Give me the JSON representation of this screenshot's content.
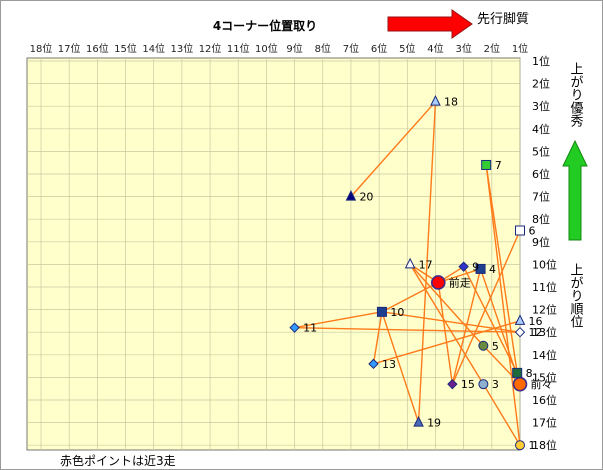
{
  "chart_data": {
    "type": "scatter",
    "title": "4コーナー位置取り",
    "x_arrow_label": "先行脚質",
    "y_arrow_label": "上がり優秀",
    "y_side_label": "上がり順位",
    "footnote": "赤色ポイントは近3走",
    "x_ticks": [
      "18位",
      "17位",
      "16位",
      "15位",
      "14位",
      "13位",
      "12位",
      "11位",
      "10位",
      "9位",
      "8位",
      "7位",
      "6位",
      "5位",
      "4位",
      "3位",
      "2位",
      "1位"
    ],
    "y_ticks": [
      "1位",
      "2位",
      "3位",
      "4位",
      "5位",
      "6位",
      "7位",
      "8位",
      "9位",
      "10位",
      "11位",
      "12位",
      "13位",
      "14位",
      "15位",
      "16位",
      "17位",
      "18位"
    ],
    "xlim": [
      18,
      1
    ],
    "ylim": [
      1,
      18
    ],
    "points": [
      {
        "label": "前走",
        "x": 3.9,
        "y": 10.8,
        "shape": "circle",
        "color": "#ff0000",
        "size": "large"
      },
      {
        "label": "前々",
        "x": 1.0,
        "y": 15.3,
        "shape": "circle",
        "color": "#ff6a00",
        "size": "large"
      },
      {
        "label": "3",
        "x": 2.3,
        "y": 15.3,
        "shape": "circle",
        "color": "#8fb0d0"
      },
      {
        "label": "4",
        "x": 2.4,
        "y": 10.2,
        "shape": "square",
        "color": "#1f3f8f"
      },
      {
        "label": "5",
        "x": 2.3,
        "y": 13.6,
        "shape": "circle",
        "color": "#6a8a40"
      },
      {
        "label": "6",
        "x": 1.0,
        "y": 8.5,
        "shape": "square",
        "color": "#ffffff"
      },
      {
        "label": "7",
        "x": 2.2,
        "y": 5.6,
        "shape": "square",
        "color": "#33cc33"
      },
      {
        "label": "8",
        "x": 1.1,
        "y": 14.8,
        "shape": "square",
        "color": "#1f6a3a"
      },
      {
        "label": "9",
        "x": 3.0,
        "y": 10.1,
        "shape": "diamond",
        "color": "#3333cc"
      },
      {
        "label": "10",
        "x": 5.9,
        "y": 12.1,
        "shape": "square",
        "color": "#1f3f8f"
      },
      {
        "label": "11",
        "x": 9.0,
        "y": 12.8,
        "shape": "diamond",
        "color": "#3399ff"
      },
      {
        "label": "12",
        "x": 1.0,
        "y": 13.0,
        "shape": "diamond",
        "color": "#ffffff"
      },
      {
        "label": "13",
        "x": 6.2,
        "y": 14.4,
        "shape": "diamond",
        "color": "#3399ff"
      },
      {
        "label": "15",
        "x": 3.4,
        "y": 15.3,
        "shape": "diamond",
        "color": "#6a1f8f"
      },
      {
        "label": "16",
        "x": 1.0,
        "y": 12.5,
        "shape": "triangle",
        "color": "#aaccff"
      },
      {
        "label": "17",
        "x": 4.9,
        "y": 10.0,
        "shape": "triangle",
        "color": "#ffffff"
      },
      {
        "label": "18",
        "x": 4.0,
        "y": 2.8,
        "shape": "triangle",
        "color": "#aaccff"
      },
      {
        "label": "19",
        "x": 4.6,
        "y": 17.0,
        "shape": "triangle",
        "color": "#4a6ab8"
      },
      {
        "label": "20",
        "x": 7.0,
        "y": 7.0,
        "shape": "triangle",
        "color": "#000080"
      },
      {
        "label": "1",
        "x": 1.0,
        "y": 18.0,
        "shape": "circle",
        "color": "#ffcc33"
      }
    ],
    "line_color": "#ff7a1a",
    "segments": [
      [
        "前走",
        "17"
      ],
      [
        "前走",
        "10"
      ],
      [
        "前走",
        "4"
      ],
      [
        "前走",
        "9"
      ],
      [
        "前走",
        "15"
      ],
      [
        "17",
        "5"
      ],
      [
        "17",
        "3"
      ],
      [
        "10",
        "11"
      ],
      [
        "10",
        "13"
      ],
      [
        "10",
        "19"
      ],
      [
        "10",
        "12"
      ],
      [
        "11",
        "12"
      ],
      [
        "18",
        "20"
      ],
      [
        "18",
        "19"
      ],
      [
        "7",
        "8"
      ],
      [
        "7",
        "1"
      ],
      [
        "6",
        "15"
      ],
      [
        "4",
        "前々"
      ],
      [
        "9",
        "8"
      ],
      [
        "5",
        "前々"
      ],
      [
        "13",
        "16"
      ],
      [
        "15",
        "4"
      ],
      [
        "3",
        "1"
      ],
      [
        "8",
        "前々"
      ]
    ]
  },
  "colors": {
    "plot_bg": "#ffffcc",
    "grid": "#c8c8a0",
    "arrow_red": "#ff0000",
    "arrow_green": "#22cc22"
  }
}
